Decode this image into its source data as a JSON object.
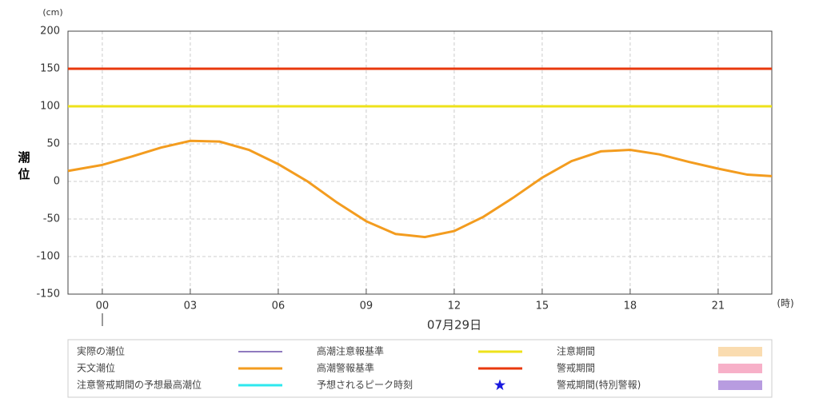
{
  "chart_data": {
    "type": "line",
    "y_unit": "(cm)",
    "x_unit": "(時)",
    "ylabel": "潮位",
    "date_label": "07月29日",
    "xlim": [
      -1.17,
      22.83
    ],
    "ylim": [
      -150,
      200
    ],
    "yticks": [
      200,
      150,
      100,
      50,
      0,
      -50,
      -100,
      -150
    ],
    "xticks": [
      {
        "value": 0,
        "label": "00"
      },
      {
        "value": 3,
        "label": "03"
      },
      {
        "value": 6,
        "label": "06"
      },
      {
        "value": 9,
        "label": "09"
      },
      12,
      15,
      18,
      21
    ],
    "grid": true,
    "x": [
      -1.17,
      0,
      1,
      2,
      3,
      4,
      5,
      6,
      7,
      8,
      9,
      10,
      11,
      12,
      13,
      14,
      15,
      16,
      17,
      18,
      19,
      20,
      21,
      22,
      22.83
    ],
    "series": [
      {
        "name": "実際の潮位",
        "color": "#6a4fa8"
      },
      {
        "name": "天文潮位",
        "color": "#f39c1f",
        "values": [
          14,
          22,
          33,
          45,
          54,
          53,
          42,
          23,
          0,
          -28,
          -53,
          -70,
          -74,
          -66,
          -47,
          -22,
          5,
          27,
          40,
          42,
          36,
          26,
          17,
          9,
          7
        ]
      },
      {
        "name": "注意警戒期間の予想最高潮位",
        "color": "#2ee8ee"
      }
    ],
    "reference_lines": [
      {
        "name": "高潮注意報基準",
        "value": 100,
        "color": "#eee21a"
      },
      {
        "name": "高潮警報基準",
        "value": 150,
        "color": "#e8380d"
      }
    ],
    "peak_marker": {
      "name": "予想されるピーク時刻",
      "color": "#1a1adf"
    },
    "periods": [
      {
        "name": "注意期間",
        "color": "#fadcb0"
      },
      {
        "name": "警戒期間",
        "color": "#f7b0c8"
      },
      {
        "name": "警戒期間(特別警報)",
        "color": "#b89ce0"
      }
    ]
  }
}
